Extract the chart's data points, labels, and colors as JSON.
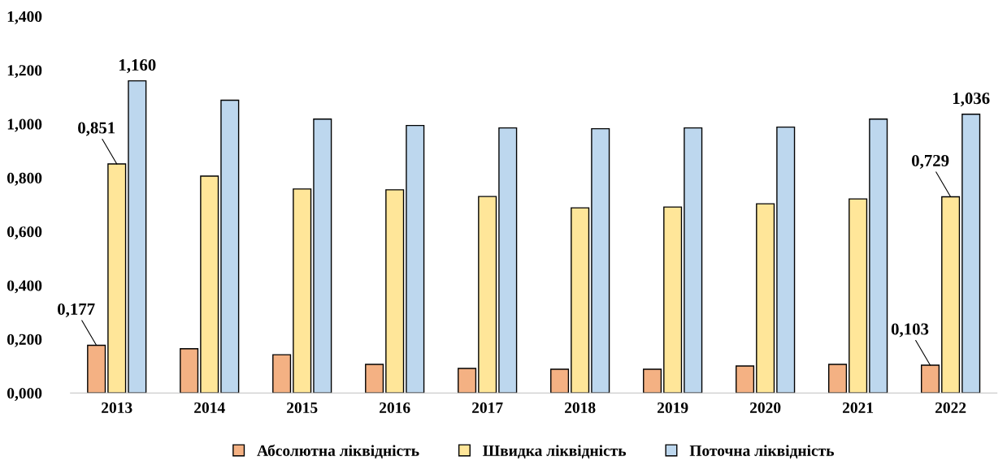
{
  "chart_data": {
    "type": "bar",
    "categories": [
      "2013",
      "2014",
      "2015",
      "2016",
      "2017",
      "2018",
      "2019",
      "2020",
      "2021",
      "2022"
    ],
    "series": [
      {
        "name": "Абсолютна ліквідність",
        "color": "#f4b183",
        "values": [
          0.177,
          0.164,
          0.142,
          0.106,
          0.091,
          0.088,
          0.088,
          0.1,
          0.106,
          0.103
        ],
        "value_labels": [
          "0,177",
          null,
          null,
          null,
          null,
          null,
          null,
          null,
          null,
          "0,103"
        ]
      },
      {
        "name": "Швидка ліквідність",
        "color": "#ffe699",
        "values": [
          0.851,
          0.806,
          0.758,
          0.755,
          0.73,
          0.688,
          0.691,
          0.703,
          0.721,
          0.729
        ],
        "value_labels": [
          "0,851",
          null,
          null,
          null,
          null,
          null,
          null,
          null,
          null,
          "0,729"
        ]
      },
      {
        "name": "Поточна ліквідність",
        "color": "#bdd7ee",
        "values": [
          1.16,
          1.088,
          1.018,
          0.994,
          0.985,
          0.982,
          0.985,
          0.988,
          1.018,
          1.036
        ],
        "value_labels": [
          "1,160",
          null,
          null,
          null,
          null,
          null,
          null,
          null,
          null,
          "1,036"
        ]
      }
    ],
    "ylim": [
      0,
      1.4
    ],
    "yticks": [
      {
        "value": 0,
        "label": "0,000"
      },
      {
        "value": 0.2,
        "label": "0,200"
      },
      {
        "value": 0.4,
        "label": "0,400"
      },
      {
        "value": 0.6,
        "label": "0,600"
      },
      {
        "value": 0.8,
        "label": "0,800"
      },
      {
        "value": 1.0,
        "label": "1,000"
      },
      {
        "value": 1.2,
        "label": "1,200"
      },
      {
        "value": 1.4,
        "label": "1,400"
      }
    ],
    "grid": false,
    "legend": "bottom"
  }
}
